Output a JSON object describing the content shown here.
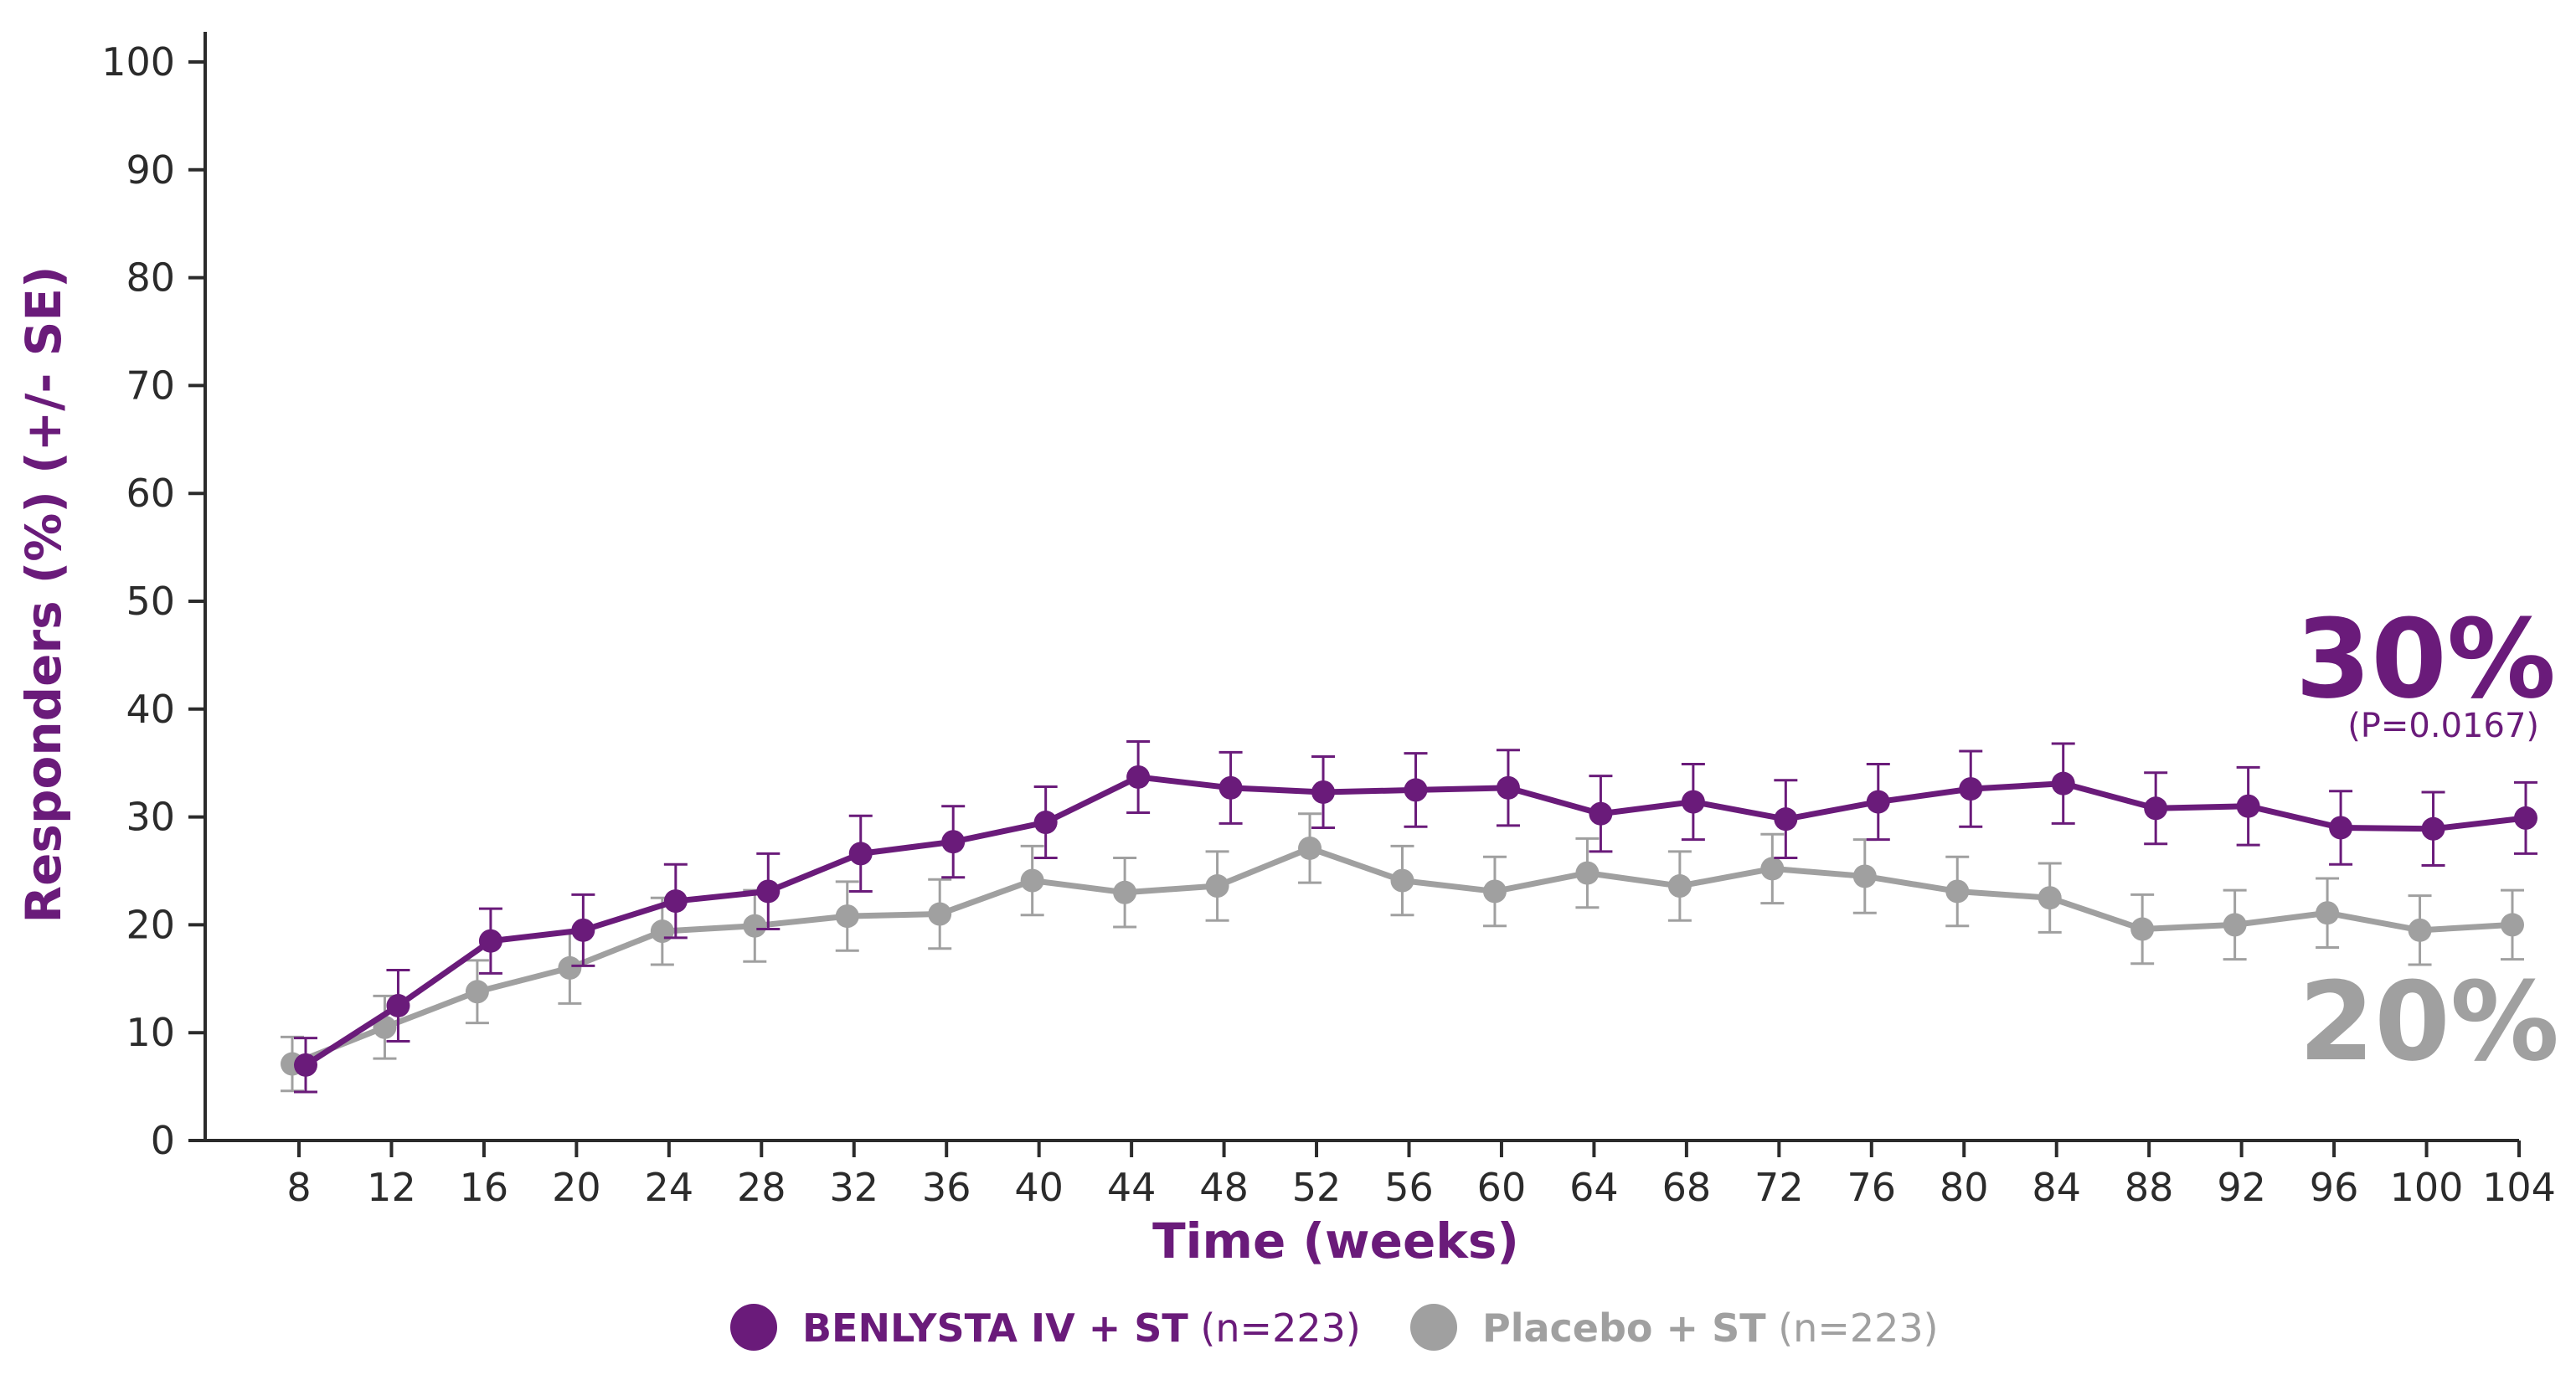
{
  "chart_data": {
    "type": "line",
    "xlabel": "Time (weeks)",
    "ylabel": "Responders (%) (+/- SE)",
    "ylim": [
      0,
      100
    ],
    "yticks": [
      0,
      10,
      20,
      30,
      40,
      50,
      60,
      70,
      80,
      90,
      100
    ],
    "x": [
      8,
      12,
      16,
      20,
      24,
      28,
      32,
      36,
      40,
      44,
      48,
      52,
      56,
      60,
      64,
      68,
      72,
      76,
      80,
      84,
      88,
      92,
      96,
      100,
      104
    ],
    "grid": false,
    "legend_position": "bottom",
    "series": [
      {
        "name_bold": "BENLYSTA IV + ST",
        "name_suffix": " (n=223)",
        "color": "#6a1b7a",
        "values": [
          7.0,
          12.5,
          18.5,
          19.5,
          22.2,
          23.1,
          26.6,
          27.7,
          29.5,
          33.7,
          32.7,
          32.3,
          32.5,
          32.7,
          30.3,
          31.4,
          29.8,
          31.4,
          32.6,
          33.1,
          30.8,
          31.0,
          29.0,
          28.9,
          29.9
        ],
        "se": [
          2.5,
          3.3,
          3.0,
          3.3,
          3.4,
          3.5,
          3.5,
          3.3,
          3.3,
          3.3,
          3.3,
          3.3,
          3.4,
          3.5,
          3.5,
          3.5,
          3.6,
          3.5,
          3.5,
          3.7,
          3.3,
          3.6,
          3.4,
          3.4,
          3.3
        ],
        "end_label": "30%",
        "end_sublabel": "(P=0.0167)"
      },
      {
        "name_bold": "Placebo + ST",
        "name_suffix": " (n=223)",
        "color": "#a0a0a0",
        "values": [
          7.1,
          10.5,
          13.8,
          16.0,
          19.4,
          19.9,
          20.8,
          21.0,
          24.1,
          23.0,
          23.6,
          27.1,
          24.1,
          23.1,
          24.8,
          23.6,
          25.2,
          24.5,
          23.1,
          22.5,
          19.6,
          20.0,
          21.1,
          19.5,
          20.0
        ],
        "se": [
          2.5,
          2.9,
          2.9,
          3.3,
          3.1,
          3.3,
          3.2,
          3.2,
          3.2,
          3.2,
          3.2,
          3.2,
          3.2,
          3.2,
          3.2,
          3.2,
          3.2,
          3.4,
          3.2,
          3.2,
          3.2,
          3.2,
          3.2,
          3.2,
          3.2
        ],
        "end_label": "20%"
      }
    ]
  }
}
